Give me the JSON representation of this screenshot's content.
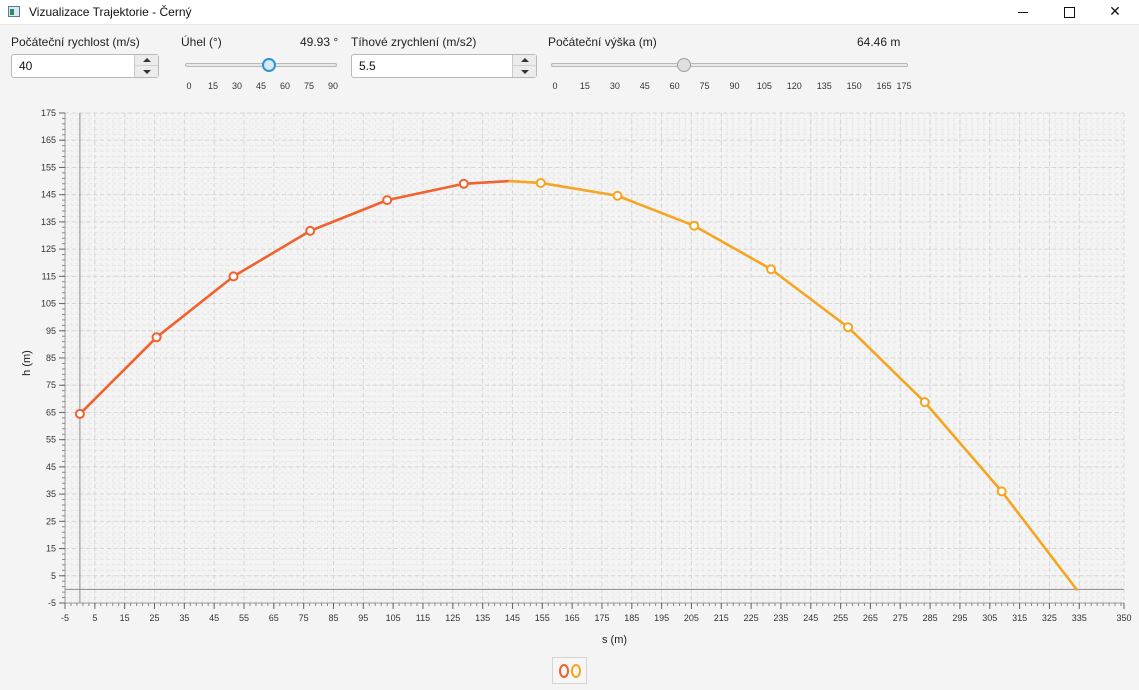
{
  "window": {
    "title": "Vizualizace Trajektorie - Černý",
    "minimize_icon": "minimize-icon",
    "maximize_icon": "maximize-icon",
    "close_icon": "close-icon"
  },
  "controls": {
    "initial_speed": {
      "label": "Počáteční rychlost (m/s)",
      "value": "40"
    },
    "angle": {
      "label": "Úhel (°)",
      "readout": "49.93 °",
      "value": 49.93,
      "min": 0,
      "max": 90,
      "ticks": [
        "0",
        "15",
        "30",
        "45",
        "60",
        "75",
        "90"
      ]
    },
    "gravity": {
      "label": "Tíhové zrychlení (m/s2)",
      "value": "5.5"
    },
    "initial_height": {
      "label": "Počáteční výška (m)",
      "readout": "64.46 m",
      "value": 64.46,
      "min": 0,
      "max": 175,
      "ticks": [
        "0",
        "15",
        "30",
        "45",
        "60",
        "75",
        "90",
        "105",
        "120",
        "135",
        "150",
        "165",
        "175"
      ]
    }
  },
  "chart_data": {
    "type": "line",
    "xlabel": "s (m)",
    "ylabel": "h (m)",
    "xlim": [
      -5,
      350
    ],
    "ylim": [
      -5,
      175
    ],
    "x_major_ticks": [
      -5,
      5,
      15,
      25,
      35,
      45,
      55,
      65,
      75,
      85,
      95,
      105,
      115,
      125,
      135,
      145,
      155,
      165,
      175,
      185,
      195,
      205,
      215,
      225,
      235,
      245,
      255,
      265,
      275,
      285,
      295,
      305,
      315,
      325,
      335,
      350
    ],
    "y_major_ticks": [
      -5,
      5,
      15,
      25,
      35,
      45,
      55,
      65,
      75,
      85,
      95,
      105,
      115,
      125,
      135,
      145,
      155,
      165,
      175
    ],
    "grid": true,
    "series": [
      {
        "color": "#f0622e",
        "x": [
          0,
          25.7,
          51.5,
          77.2,
          103,
          128.7,
          144
        ],
        "y": [
          64.46,
          92.6,
          115,
          131.7,
          143,
          149,
          150.0
        ]
      },
      {
        "color": "#f5a520",
        "x": [
          144,
          154.5,
          180.2,
          205.9,
          231.7,
          257.5,
          283.2,
          309,
          334.1
        ],
        "y": [
          150.0,
          149.3,
          144.6,
          133.6,
          117.6,
          96.3,
          68.8,
          36,
          0
        ]
      }
    ],
    "marker_series": [
      {
        "color": "#f0622e",
        "x": [
          0,
          25.7,
          51.5,
          77.2,
          103,
          128.7
        ],
        "y": [
          64.46,
          92.6,
          115,
          131.7,
          143,
          149
        ]
      },
      {
        "color": "#f5a520",
        "x": [
          154.5,
          180.2,
          205.9,
          231.7,
          257.5,
          283.2,
          309
        ],
        "y": [
          149.3,
          144.6,
          133.6,
          117.6,
          96.3,
          68.8,
          36
        ]
      }
    ],
    "legend": {
      "placement": "bottom-center",
      "colors": [
        "#f0622e",
        "#f5a520"
      ]
    }
  }
}
